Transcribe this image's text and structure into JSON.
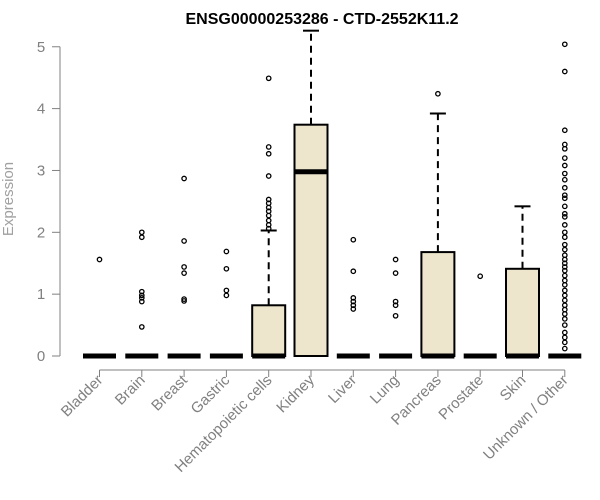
{
  "chart_data": {
    "type": "boxplot",
    "title": "ENSG00000253286 - CTD-2552K11.2",
    "xlabel": "",
    "ylabel": "Expression",
    "ylim": [
      0,
      5.25
    ],
    "yticks": [
      0,
      1,
      2,
      3,
      4,
      5
    ],
    "box_color": "#ede6cd",
    "grid": false,
    "categories": [
      "Bladder",
      "Brain",
      "Breast",
      "Gastric",
      "Hematopoietic cells",
      "Kidney",
      "Liver",
      "Lung",
      "Pancreas",
      "Prostate",
      "Skin",
      "Unknown / Other"
    ],
    "boxes": [
      {
        "q1": 0,
        "median": 0,
        "q3": 0,
        "whisker_low": 0,
        "whisker_high": 0,
        "outliers": [
          1.56
        ]
      },
      {
        "q1": 0,
        "median": 0,
        "q3": 0,
        "whisker_low": 0,
        "whisker_high": 0,
        "outliers": [
          2.0,
          1.92,
          1.04,
          0.98,
          0.94,
          0.88,
          0.47
        ]
      },
      {
        "q1": 0,
        "median": 0,
        "q3": 0,
        "whisker_low": 0,
        "whisker_high": 0,
        "outliers": [
          2.87,
          1.86,
          1.44,
          1.34,
          0.92,
          0.89
        ]
      },
      {
        "q1": 0,
        "median": 0,
        "q3": 0,
        "whisker_low": 0,
        "whisker_high": 0,
        "outliers": [
          1.69,
          1.41,
          1.06,
          0.98
        ]
      },
      {
        "q1": 0,
        "median": 0,
        "q3": 0.82,
        "whisker_low": 0,
        "whisker_high": 2.03,
        "outliers": [
          4.49,
          3.38,
          3.27,
          2.91,
          2.53,
          2.47,
          2.4,
          2.34,
          2.27,
          2.19,
          2.12,
          2.06
        ]
      },
      {
        "q1": 0,
        "median": 2.98,
        "q3": 3.74,
        "whisker_low": 0,
        "whisker_high": 5.26,
        "outliers": []
      },
      {
        "q1": 0,
        "median": 0,
        "q3": 0,
        "whisker_low": 0,
        "whisker_high": 0,
        "outliers": [
          1.88,
          1.37,
          0.94,
          0.88,
          0.82,
          0.76
        ]
      },
      {
        "q1": 0,
        "median": 0,
        "q3": 0,
        "whisker_low": 0,
        "whisker_high": 0,
        "outliers": [
          1.56,
          1.34,
          0.88,
          0.82,
          0.65
        ]
      },
      {
        "q1": 0,
        "median": 0,
        "q3": 1.68,
        "whisker_low": 0,
        "whisker_high": 3.92,
        "outliers": [
          4.24
        ]
      },
      {
        "q1": 0,
        "median": 0,
        "q3": 0,
        "whisker_low": 0,
        "whisker_high": 0,
        "outliers": [
          1.29
        ]
      },
      {
        "q1": 0,
        "median": 0,
        "q3": 1.41,
        "whisker_low": 0,
        "whisker_high": 2.42,
        "outliers": []
      },
      {
        "q1": 0,
        "median": 0,
        "q3": 0,
        "whisker_low": 0,
        "whisker_high": 0,
        "outliers": [
          5.04,
          4.6,
          3.65,
          3.42,
          3.35,
          3.2,
          3.08,
          2.95,
          2.85,
          2.72,
          2.6,
          2.55,
          2.42,
          2.3,
          2.25,
          2.12,
          2.0,
          1.92,
          1.8,
          1.72,
          1.63,
          1.56,
          1.5,
          1.44,
          1.38,
          1.3,
          1.22,
          1.15,
          1.06,
          0.98,
          0.9,
          0.82,
          0.75,
          0.68,
          0.6,
          0.5,
          0.38,
          0.3,
          0.22,
          0.12
        ]
      }
    ]
  }
}
